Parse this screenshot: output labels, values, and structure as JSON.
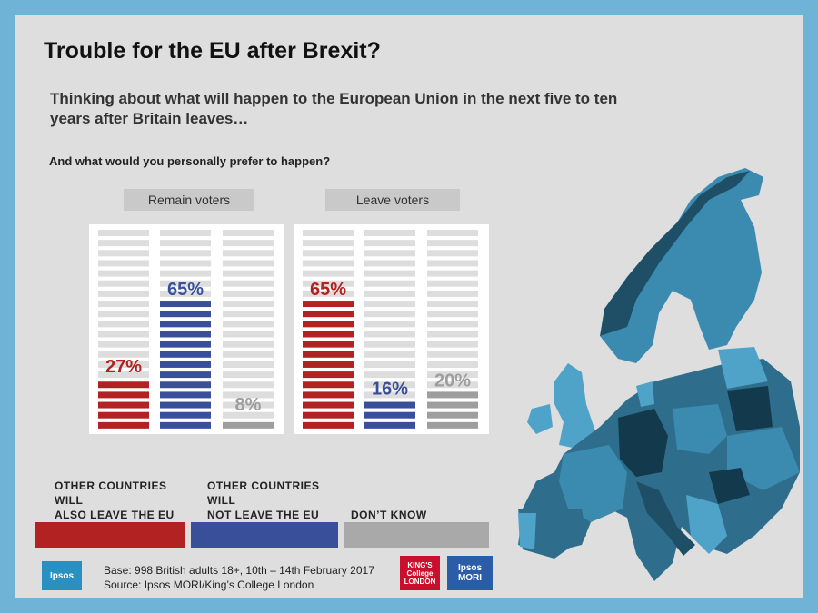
{
  "title": "Trouble for the EU after Brexit?",
  "question": "Thinking about what will happen to the European Union in the next five to ten years after Britain leaves…",
  "subquestion": "And what would you personally prefer to happen?",
  "chart_data": {
    "type": "bar",
    "ylim": [
      0,
      100
    ],
    "panels": [
      {
        "name": "Remain voters",
        "values": [
          27,
          65,
          8
        ],
        "labels": [
          "27%",
          "65%",
          "8%"
        ]
      },
      {
        "name": "Leave voters",
        "values": [
          65,
          16,
          20
        ],
        "labels": [
          "65%",
          "16%",
          "20%"
        ]
      }
    ],
    "categories": [
      {
        "lines": [
          "OTHER COUNTRIES",
          "WILL",
          "ALSO LEAVE  THE EU"
        ],
        "color": "#b22222"
      },
      {
        "lines": [
          "OTHER COUNTRIES",
          "WILL",
          "NOT LEAVE  THE EU"
        ],
        "color": "#3a4f9a"
      },
      {
        "lines": [
          "DON’T KNOW"
        ],
        "color": "#9e9e9e"
      }
    ]
  },
  "footer": {
    "base": "Base: 998 British adults 18+, 10th – 14th  February 2017",
    "source": "Source: Ipsos MORI/King’s College London",
    "ipsos_logo": "Ipsos",
    "kings_logo": "KING'S College LONDON",
    "ipsos_mori_logo": "Ipsos MORI"
  },
  "colors": {
    "remain_accent": "#b22222",
    "leave_accent": "#3a4f9a",
    "dont_know": "#9e9e9e",
    "frame": "#6fb3d6",
    "map": "#2e6e8c"
  }
}
